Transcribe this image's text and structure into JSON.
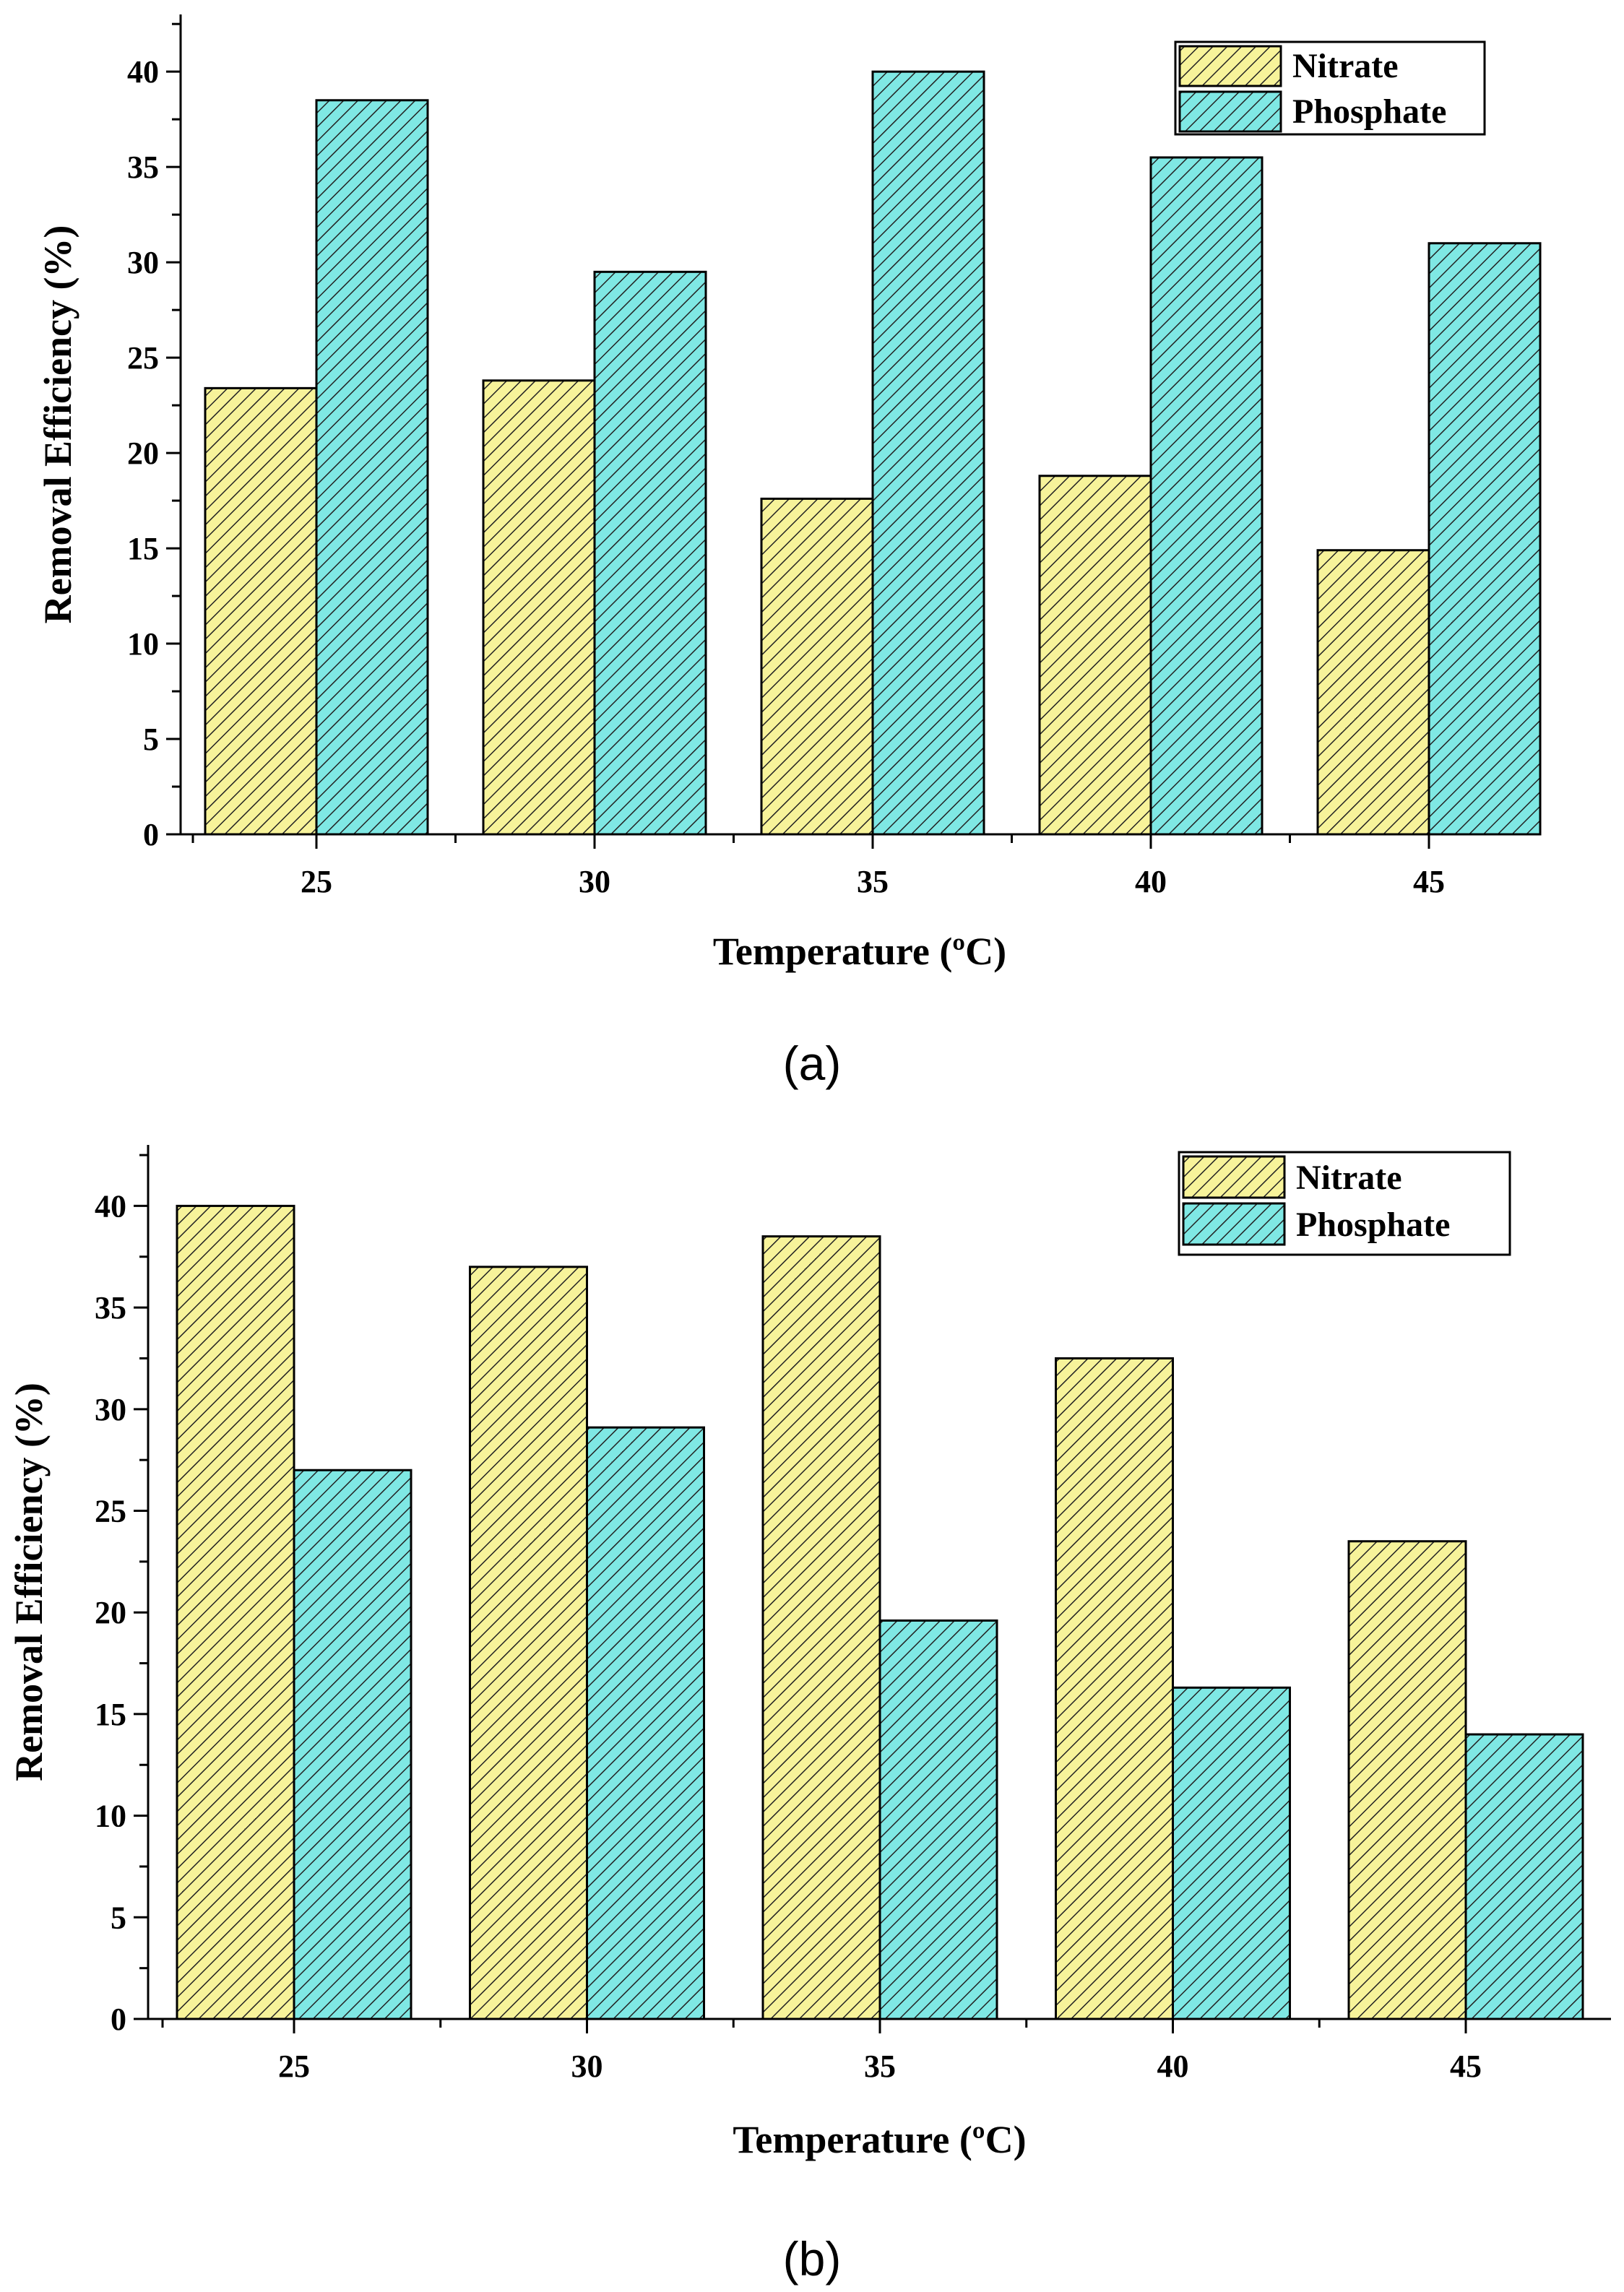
{
  "chart_data": [
    {
      "type": "bar",
      "panel_label": "(a)",
      "categories": [
        "25",
        "30",
        "35",
        "40",
        "45"
      ],
      "series": [
        {
          "name": "Nitrate",
          "values": [
            23.4,
            23.8,
            17.6,
            18.8,
            14.9
          ],
          "color": "#f7f39a"
        },
        {
          "name": "Phosphate",
          "values": [
            38.5,
            29.5,
            40.0,
            35.5,
            31.0
          ],
          "color": "#7fe8e4"
        }
      ],
      "xlabel": "Temperature (ºC)",
      "ylabel": "Removal Efficiency (%)",
      "ylim": [
        0,
        43
      ],
      "yticks": [
        "0",
        "5",
        "10",
        "15",
        "20",
        "25",
        "30",
        "35",
        "40"
      ],
      "legend_position": "top-right",
      "grid": false,
      "bar_pattern": "diagonal-hatch"
    },
    {
      "type": "bar",
      "panel_label": "(b)",
      "categories": [
        "25",
        "30",
        "35",
        "40",
        "45"
      ],
      "series": [
        {
          "name": "Nitrate",
          "values": [
            40.0,
            37.0,
            38.5,
            32.5,
            23.5
          ],
          "color": "#f7f39a"
        },
        {
          "name": "Phosphate",
          "values": [
            27.0,
            29.1,
            19.6,
            16.3,
            14.0
          ],
          "color": "#7fe8e4"
        }
      ],
      "xlabel": "Temperature (ºC)",
      "ylabel": "Removal Efficiency (%)",
      "ylim": [
        0,
        43
      ],
      "yticks": [
        "0",
        "5",
        "10",
        "15",
        "20",
        "25",
        "30",
        "35",
        "40"
      ],
      "legend_position": "top-right",
      "grid": false,
      "bar_pattern": "diagonal-hatch"
    }
  ]
}
